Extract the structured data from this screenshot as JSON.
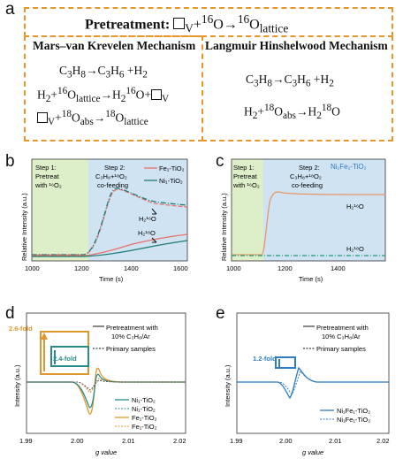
{
  "panels": {
    "a": {
      "label": "a",
      "pretreat": "Pretreatment: □V+16O→16Olattice",
      "mvk_title": "Mars–van Krevelen Mechanism",
      "lh_title": "Langmuir Hinshelwood Mechanism",
      "mvk_eq1": "C3H8→C3H6 +H2",
      "mvk_eq2": "H2+16Olattice→H216O+□V",
      "mvk_eq3": "□V+18Oabs→18Olattice",
      "lh_eq1": "C3H8→C3H6 +H2",
      "lh_eq2": "H2+18Oabs→H218O"
    },
    "b": {
      "label": "b",
      "step1": [
        "Step 1:",
        "Pretreat",
        "with 16O2"
      ],
      "step2": [
        "Step 2:",
        "C3H8+18O2",
        "co-feeding"
      ],
      "legend": [
        "Fe1-TiO2",
        "Ni1-TiO2"
      ],
      "ann1": "H216O",
      "ann2": "H218O",
      "ylabel": "Relative Intensity (a.u.)",
      "xlabel": "Time (s)",
      "xticks": [
        "1000",
        "1200",
        "1400",
        "1600"
      ]
    },
    "c": {
      "label": "c",
      "step1": [
        "Step 1:",
        "Pretreat",
        "with 16O2"
      ],
      "step2": [
        "Step 2:",
        "C3H8+18O2",
        "co-feeding"
      ],
      "legend": "Ni1Fe1-TiO2",
      "ann1": "H216O",
      "ann2": "H218O",
      "ylabel": "Relative Intensity (a.u.)",
      "xlabel": "Time (s)",
      "xticks": [
        "1000",
        "1200",
        "1400"
      ]
    },
    "d": {
      "label": "d",
      "legend_top": [
        "Pretreatment with",
        "10% C3H8/Ar",
        "Primary samples"
      ],
      "fold1": "2.6-fold",
      "fold2": "2.4-fold",
      "legend": [
        "Ni1-TiO2",
        "Ni1-TiO2",
        "Fe1-TiO2",
        "Fe1-TiO2"
      ],
      "ylabel": "Intensity (a.u.)",
      "xlabel": "g value",
      "xticks": [
        "1.99",
        "2.00",
        "2.01",
        "2.02"
      ]
    },
    "e": {
      "label": "e",
      "legend_top": [
        "Pretreatment with",
        "10% C3H8/Ar",
        "Primary samples"
      ],
      "fold": "1.2-fold",
      "legend": [
        "Ni1Fe1-TiO2",
        "Ni1Fe1-TiO2"
      ],
      "ylabel": "Intensity (a.u.)",
      "xlabel": "g value",
      "xticks": [
        "1.99",
        "2.00",
        "2.01",
        "2.02"
      ]
    }
  },
  "colors": {
    "orange": "#E8962C",
    "fe": "#E8736A",
    "ni": "#1E7C78",
    "blue": "#2F7CC0",
    "green_bg": "#DDEFC8",
    "blue_bg": "#CFE3F3",
    "d_orange": "#E0962E",
    "d_teal": "#2A8C8A"
  }
}
